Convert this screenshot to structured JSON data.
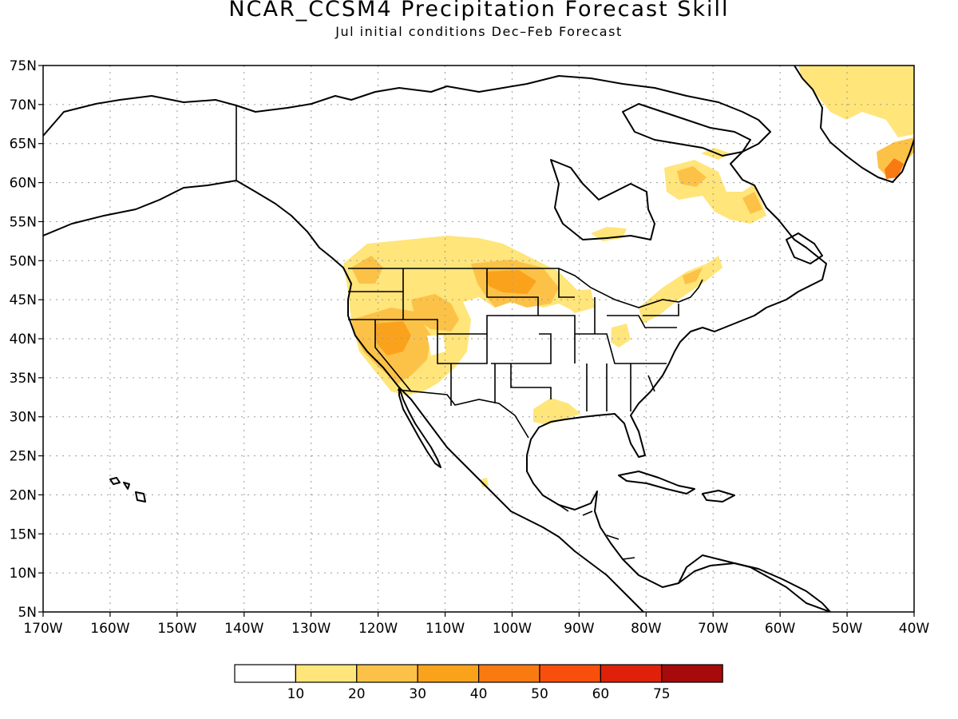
{
  "title": "NCAR_CCSM4 Precipitation Forecast Skill",
  "subtitle": "Jul initial conditions  Dec–Feb Forecast",
  "map": {
    "lon_range": [
      -170,
      -40
    ],
    "lat_range": [
      5,
      75
    ],
    "lon_labels": [
      "170W",
      "160W",
      "150W",
      "140W",
      "130W",
      "120W",
      "110W",
      "100W",
      "90W",
      "80W",
      "70W",
      "60W",
      "50W",
      "40W"
    ],
    "lat_labels": [
      "5N",
      "10N",
      "15N",
      "20N",
      "25N",
      "30N",
      "35N",
      "40N",
      "45N",
      "50N",
      "55N",
      "60N",
      "65N",
      "70N",
      "75N"
    ],
    "grid": true
  },
  "legend": {
    "colors": [
      "#ffffff",
      "#ffe57a",
      "#fcc247",
      "#fba21d",
      "#fa7a12",
      "#f84f0c",
      "#df210b",
      "#a60a0a"
    ],
    "labels": [
      "10",
      "20",
      "30",
      "40",
      "50",
      "60",
      "75"
    ]
  },
  "colors": {
    "skill_10_20": "#ffe57a",
    "skill_20_30": "#fcc247",
    "skill_30_40": "#fba21d",
    "skill_40_50": "#fa7a12"
  }
}
